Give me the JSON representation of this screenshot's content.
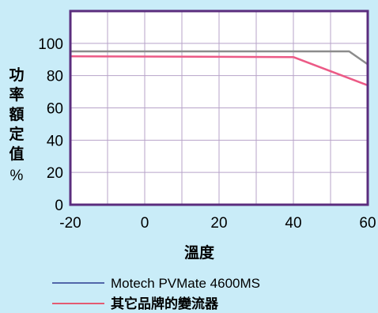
{
  "chart_data": {
    "type": "line",
    "title": "",
    "xlabel": "溫度",
    "ylabel_chars": [
      "功",
      "率",
      "額",
      "定",
      "值"
    ],
    "ylabel_unit": "%",
    "xlim": [
      -20,
      60
    ],
    "ylim": [
      0,
      120
    ],
    "x_ticks": [
      -20,
      0,
      20,
      40,
      60
    ],
    "y_ticks": [
      0,
      20,
      40,
      60,
      80,
      100
    ],
    "grid": true,
    "legend_position": "bottom",
    "colors": {
      "background": "#c9ecf8",
      "plot_background": "#ffffff",
      "frame": "#5b2d7e",
      "grid": "#b7a3c9"
    },
    "series": [
      {
        "name": "Motech PVMate 4600MS",
        "color": "#8c8c8c",
        "legend_color": "#2a3b8f",
        "points": [
          [
            -20,
            95
          ],
          [
            55,
            95
          ],
          [
            60,
            87
          ]
        ]
      },
      {
        "name": "其它品牌的變流器",
        "color": "#ec5a86",
        "legend_color": "#ec2b45",
        "points": [
          [
            -20,
            92
          ],
          [
            40,
            91.5
          ],
          [
            60,
            74
          ]
        ]
      }
    ]
  }
}
